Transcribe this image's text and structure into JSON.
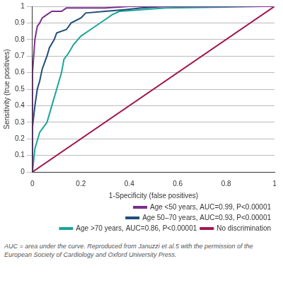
{
  "chart_data": {
    "type": "line",
    "x_label": "1-Specificity (false positives)",
    "y_label": "Sensitivity (true positives)",
    "caption": "AUC = area under the curve. Reproduced from Januzzi et al.5 with the permission of the European Society of Cardiology and Oxford University Press.",
    "xlim": [
      0,
      1
    ],
    "ylim": [
      0,
      1
    ],
    "xticks": [
      0,
      0.2,
      0.4,
      0.6,
      0.8,
      1
    ],
    "yticks": [
      0,
      0.1,
      0.2,
      0.3,
      0.4,
      0.5,
      0.6,
      0.7,
      0.8,
      0.9,
      1
    ],
    "grid": "y",
    "legend": "bottom",
    "series": [
      {
        "name": "Age <50 years, AUC=0.99, P<0.00001",
        "color": "#7b2d8e",
        "x": [
          0,
          0,
          0.01,
          0.02,
          0.03,
          0.04,
          0.06,
          0.08,
          0.12,
          0.14,
          0.3,
          0.4,
          1
        ],
        "values": [
          0,
          0.6,
          0.8,
          0.88,
          0.9,
          0.93,
          0.95,
          0.97,
          0.97,
          0.99,
          0.99,
          1,
          1
        ]
      },
      {
        "name": "Age 50–70 years, AUC=0.93, P<0.00001",
        "color": "#1f4e79",
        "x": [
          0,
          0,
          0.01,
          0.02,
          0.03,
          0.04,
          0.06,
          0.07,
          0.09,
          0.1,
          0.14,
          0.16,
          0.2,
          0.22,
          0.3,
          0.38,
          0.45,
          0.55,
          1
        ],
        "values": [
          0,
          0.27,
          0.4,
          0.5,
          0.55,
          0.62,
          0.7,
          0.75,
          0.8,
          0.84,
          0.86,
          0.9,
          0.93,
          0.96,
          0.97,
          0.98,
          0.99,
          1,
          1
        ]
      },
      {
        "name": "Age >70 years, AUC=0.86, P<0.00001",
        "color": "#1aa59a",
        "x": [
          0,
          0.01,
          0.03,
          0.06,
          0.08,
          0.1,
          0.12,
          0.13,
          0.15,
          0.17,
          0.2,
          0.24,
          0.27,
          0.3,
          0.33,
          0.36,
          0.45,
          0.55,
          0.75,
          0.95,
          1
        ],
        "values": [
          0,
          0.14,
          0.24,
          0.3,
          0.4,
          0.5,
          0.6,
          0.68,
          0.72,
          0.77,
          0.82,
          0.86,
          0.89,
          0.92,
          0.95,
          0.97,
          0.98,
          0.99,
          0.995,
          1,
          1
        ]
      },
      {
        "name": "No discrimination",
        "color": "#a0174f",
        "x": [
          0,
          1
        ],
        "values": [
          0,
          1
        ]
      }
    ]
  }
}
